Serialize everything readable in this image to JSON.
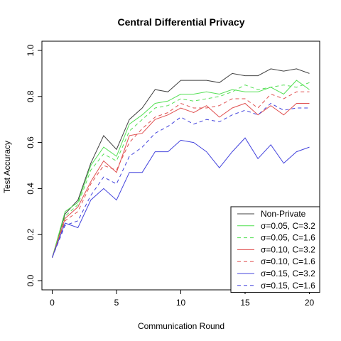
{
  "chart_data": {
    "type": "line",
    "title": "Central Differential Privacy",
    "xlabel": "Communication Round",
    "ylabel": "Test Accuracy",
    "xlim": [
      0,
      20
    ],
    "ylim": [
      0,
      1
    ],
    "xticks": [
      0,
      5,
      10,
      15,
      20
    ],
    "xtick_labels": [
      "0",
      "5",
      "10",
      "15",
      "20"
    ],
    "yticks": [
      0.0,
      0.2,
      0.4,
      0.6,
      0.8,
      1.0
    ],
    "ytick_labels": [
      "0.0",
      "0.2",
      "0.4",
      "0.6",
      "0.8",
      "1.0"
    ],
    "legend_position": "bottom-right",
    "x": [
      0,
      1,
      2,
      3,
      4,
      5,
      6,
      7,
      8,
      9,
      10,
      11,
      12,
      13,
      14,
      15,
      16,
      17,
      18,
      19,
      20
    ],
    "series": [
      {
        "name": "Non-Private",
        "color": "#404040",
        "dash": "solid",
        "values": [
          0.1,
          0.29,
          0.35,
          0.51,
          0.63,
          0.57,
          0.7,
          0.75,
          0.83,
          0.82,
          0.87,
          0.87,
          0.87,
          0.86,
          0.9,
          0.89,
          0.89,
          0.92,
          0.91,
          0.92,
          0.9
        ]
      },
      {
        "name": "σ=0.05, C=3.2",
        "color": "#55e055",
        "dash": "solid",
        "values": [
          0.1,
          0.3,
          0.34,
          0.5,
          0.58,
          0.54,
          0.68,
          0.72,
          0.77,
          0.78,
          0.81,
          0.81,
          0.82,
          0.81,
          0.83,
          0.82,
          0.82,
          0.84,
          0.81,
          0.87,
          0.83
        ]
      },
      {
        "name": "σ=0.05, C=1.6",
        "color": "#55e055",
        "dash": "dashed",
        "values": [
          0.1,
          0.28,
          0.33,
          0.48,
          0.55,
          0.52,
          0.65,
          0.7,
          0.75,
          0.76,
          0.79,
          0.78,
          0.79,
          0.8,
          0.82,
          0.85,
          0.83,
          0.84,
          0.85,
          0.84,
          0.86
        ]
      },
      {
        "name": "σ=0.10, C=3.2",
        "color": "#e05050",
        "dash": "solid",
        "values": [
          0.1,
          0.27,
          0.32,
          0.43,
          0.52,
          0.47,
          0.63,
          0.64,
          0.7,
          0.72,
          0.75,
          0.73,
          0.76,
          0.71,
          0.75,
          0.77,
          0.72,
          0.76,
          0.72,
          0.77,
          0.77
        ]
      },
      {
        "name": "σ=0.10, C=1.6",
        "color": "#e05050",
        "dash": "dashed",
        "values": [
          0.1,
          0.26,
          0.3,
          0.42,
          0.5,
          0.48,
          0.6,
          0.66,
          0.71,
          0.73,
          0.77,
          0.75,
          0.75,
          0.76,
          0.79,
          0.79,
          0.75,
          0.81,
          0.79,
          0.82,
          0.82
        ]
      },
      {
        "name": "σ=0.15, C=3.2",
        "color": "#4444dd",
        "dash": "solid",
        "values": [
          0.1,
          0.25,
          0.23,
          0.35,
          0.4,
          0.35,
          0.47,
          0.47,
          0.56,
          0.56,
          0.61,
          0.6,
          0.56,
          0.49,
          0.56,
          0.62,
          0.53,
          0.59,
          0.51,
          0.56,
          0.58
        ]
      },
      {
        "name": "σ=0.15, C=1.6",
        "color": "#4444dd",
        "dash": "dashed",
        "values": [
          0.1,
          0.24,
          0.26,
          0.37,
          0.45,
          0.42,
          0.54,
          0.58,
          0.64,
          0.67,
          0.71,
          0.68,
          0.7,
          0.69,
          0.72,
          0.74,
          0.72,
          0.77,
          0.74,
          0.75,
          0.75
        ]
      }
    ]
  }
}
